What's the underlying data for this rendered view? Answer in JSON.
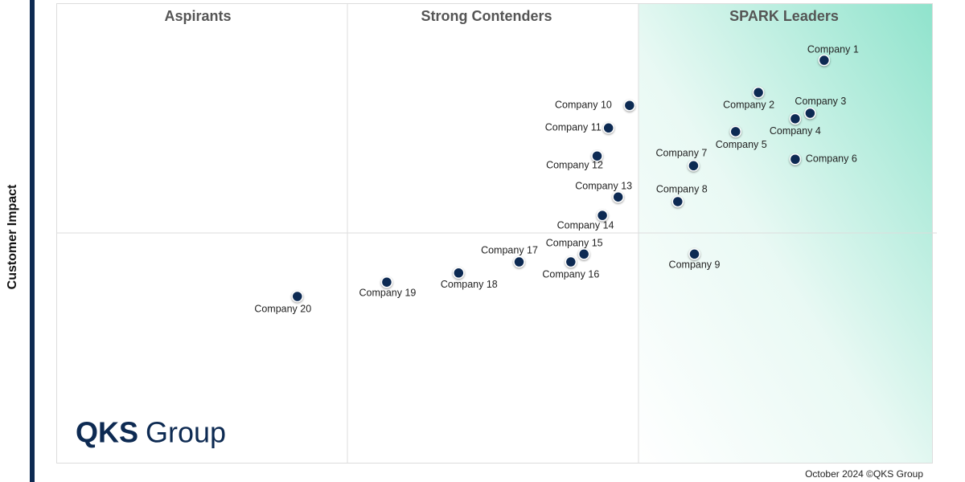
{
  "chart_data": {
    "type": "scatter",
    "quadrants": [
      "Aspirants",
      "Strong Contenders",
      "SPARK Leaders"
    ],
    "y_label": "Customer Impact",
    "footer": "October 2024 ©QKS Group",
    "logo": [
      "QKS",
      "Group"
    ],
    "color": "#0d2a52",
    "xlim": [
      0,
      100
    ],
    "ylim": [
      0,
      100
    ],
    "labels": [
      "Company 1",
      "Company 2",
      "Company 3",
      "Company 4",
      "Company 5",
      "Company 6",
      "Company 7",
      "Company 8",
      "Company 9",
      "Company 10",
      "Company 11",
      "Company 12",
      "Company 13",
      "Company 14",
      "Company 15",
      "Company 16",
      "Company 17",
      "Company 18",
      "Company 19",
      "Company 20"
    ],
    "x": [
      87.6,
      80.1,
      86.0,
      84.3,
      77.5,
      84.3,
      72.7,
      70.9,
      72.8,
      65.4,
      63.0,
      61.7,
      64.1,
      62.3,
      60.2,
      58.7,
      52.8,
      45.9,
      37.7,
      27.5
    ],
    "values": [
      87.6,
      80.6,
      76.1,
      74.9,
      72.1,
      66.1,
      64.7,
      56.9,
      45.5,
      77.8,
      72.9,
      66.8,
      57.9,
      53.9,
      45.5,
      43.8,
      43.8,
      41.4,
      39.4,
      36.3
    ]
  }
}
